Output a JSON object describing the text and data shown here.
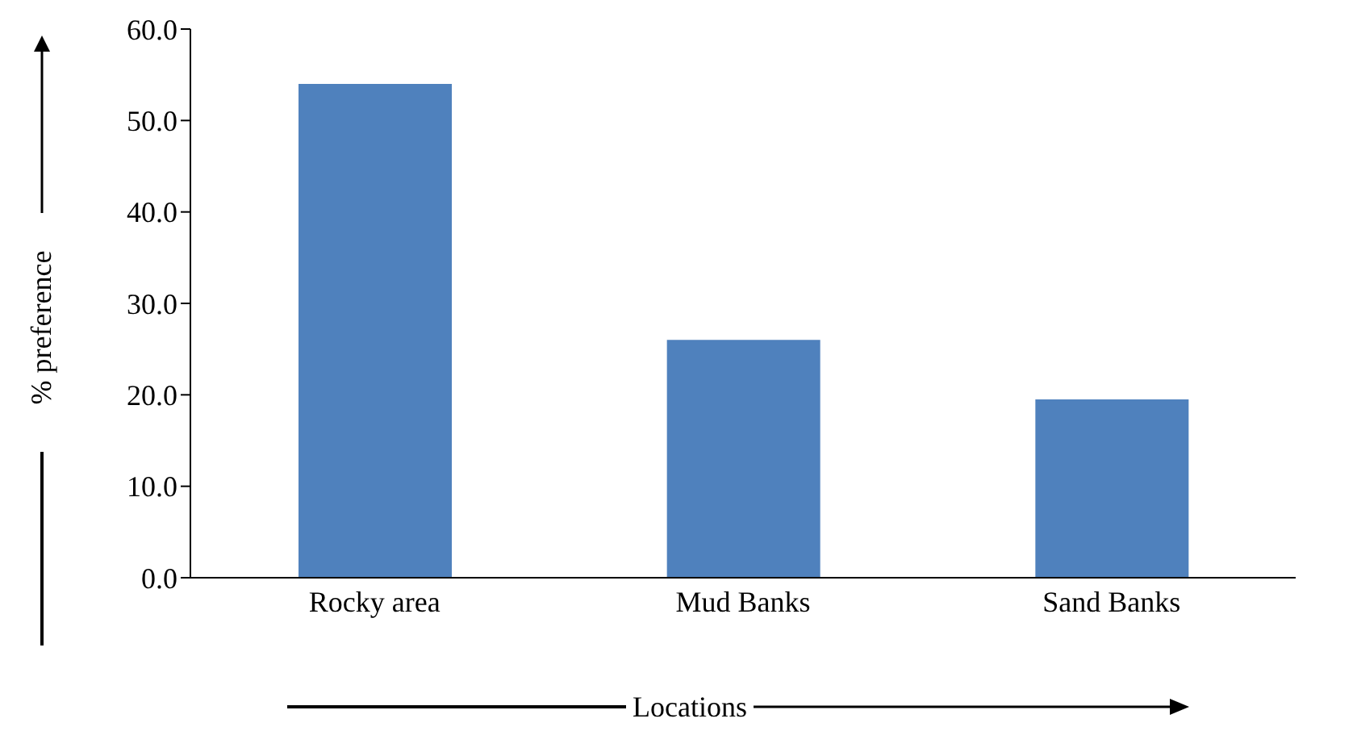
{
  "chart_data": {
    "type": "bar",
    "xlabel": "Locations",
    "ylabel": "% preference",
    "categories": [
      "Rocky area",
      "Mud Banks",
      "Sand Banks"
    ],
    "values": [
      54,
      26,
      19.5
    ],
    "color": "#4f81bd",
    "ylim": [
      0,
      60
    ],
    "yticks": [
      {
        "value": 0,
        "label": "0.0"
      },
      {
        "value": 10,
        "label": "10.0"
      },
      {
        "value": 20,
        "label": "20.0"
      },
      {
        "value": 30,
        "label": "30.0"
      },
      {
        "value": 40,
        "label": "40.0"
      },
      {
        "value": 50,
        "label": "50.0"
      },
      {
        "value": 60,
        "label": "60.0"
      }
    ],
    "grid": false,
    "legend": false
  }
}
